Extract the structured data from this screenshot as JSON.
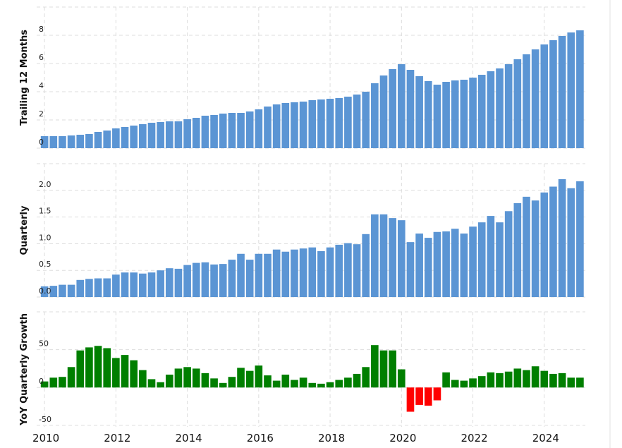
{
  "chart_data": [
    {
      "type": "bar",
      "y_label": "Trailing 12 Months",
      "color": "#5b95d4",
      "grid": true,
      "xlim": [
        2009.78,
        2025.15
      ],
      "xticks": [
        2010,
        2012,
        2014,
        2016,
        2018,
        2020,
        2022,
        2024
      ],
      "ylim": [
        0,
        10
      ],
      "yticks": [
        0,
        2,
        4,
        6,
        8
      ],
      "x": [
        2010,
        2010.25,
        2010.5,
        2010.75,
        2011,
        2011.25,
        2011.5,
        2011.75,
        2012,
        2012.25,
        2012.5,
        2012.75,
        2013,
        2013.25,
        2013.5,
        2013.75,
        2014,
        2014.25,
        2014.5,
        2014.75,
        2015,
        2015.25,
        2015.5,
        2015.75,
        2016,
        2016.25,
        2016.5,
        2016.75,
        2017,
        2017.25,
        2017.5,
        2017.75,
        2018,
        2018.25,
        2018.5,
        2018.75,
        2019,
        2019.25,
        2019.5,
        2019.75,
        2020,
        2020.25,
        2020.5,
        2020.75,
        2021,
        2021.25,
        2021.5,
        2021.75,
        2022,
        2022.25,
        2022.5,
        2022.75,
        2023,
        2023.25,
        2023.5,
        2023.75,
        2024,
        2024.25,
        2024.5,
        2024.75,
        2025
      ],
      "values": [
        0.85,
        0.85,
        0.85,
        0.9,
        0.95,
        1.0,
        1.15,
        1.25,
        1.4,
        1.5,
        1.6,
        1.7,
        1.8,
        1.85,
        1.9,
        1.9,
        2.05,
        2.15,
        2.3,
        2.35,
        2.45,
        2.5,
        2.5,
        2.6,
        2.75,
        2.95,
        3.1,
        3.2,
        3.25,
        3.3,
        3.4,
        3.45,
        3.5,
        3.55,
        3.65,
        3.8,
        4.0,
        4.6,
        5.15,
        5.6,
        5.95,
        5.55,
        5.1,
        4.75,
        4.5,
        4.7,
        4.8,
        4.85,
        5.0,
        5.2,
        5.45,
        5.65,
        5.95,
        6.3,
        6.65,
        7.0,
        7.35,
        7.65,
        7.95,
        8.2,
        8.35
      ]
    },
    {
      "type": "bar",
      "y_label": "Quarterly",
      "color": "#5b95d4",
      "grid": true,
      "xlim": [
        2009.78,
        2025.15
      ],
      "xticks": [
        2010,
        2012,
        2014,
        2016,
        2018,
        2020,
        2022,
        2024
      ],
      "ylim": [
        0,
        2.5
      ],
      "yticks": [
        {
          "value": 0,
          "label": "0.0"
        },
        0.5,
        {
          "value": 1,
          "label": "1.0"
        },
        1.5,
        {
          "value": 2,
          "label": "2.0"
        }
      ],
      "x": [
        2010,
        2010.25,
        2010.5,
        2010.75,
        2011,
        2011.25,
        2011.5,
        2011.75,
        2012,
        2012.25,
        2012.5,
        2012.75,
        2013,
        2013.25,
        2013.5,
        2013.75,
        2014,
        2014.25,
        2014.5,
        2014.75,
        2015,
        2015.25,
        2015.5,
        2015.75,
        2016,
        2016.25,
        2016.5,
        2016.75,
        2017,
        2017.25,
        2017.5,
        2017.75,
        2018,
        2018.25,
        2018.5,
        2018.75,
        2019,
        2019.25,
        2019.5,
        2019.75,
        2020,
        2020.25,
        2020.5,
        2020.75,
        2021,
        2021.25,
        2021.5,
        2021.75,
        2022,
        2022.25,
        2022.5,
        2022.75,
        2023,
        2023.25,
        2023.5,
        2023.75,
        2024,
        2024.25,
        2024.5,
        2024.75,
        2025
      ],
      "values": [
        0.2,
        0.21,
        0.23,
        0.23,
        0.32,
        0.34,
        0.35,
        0.35,
        0.42,
        0.46,
        0.46,
        0.44,
        0.46,
        0.5,
        0.54,
        0.53,
        0.6,
        0.64,
        0.65,
        0.61,
        0.62,
        0.7,
        0.81,
        0.7,
        0.81,
        0.81,
        0.89,
        0.85,
        0.89,
        0.91,
        0.93,
        0.86,
        0.93,
        0.98,
        1.01,
        0.99,
        1.18,
        1.55,
        1.55,
        1.48,
        1.44,
        1.03,
        1.19,
        1.11,
        1.22,
        1.23,
        1.28,
        1.19,
        1.32,
        1.4,
        1.52,
        1.4,
        1.61,
        1.76,
        1.88,
        1.81,
        1.96,
        2.07,
        2.21,
        2.04,
        2.17
      ]
    },
    {
      "type": "bar",
      "y_label": "YoY Quarterly Growth",
      "positive_color": "#007f00",
      "negative_color": "#ff0000",
      "grid": true,
      "xlim": [
        2009.78,
        2025.15
      ],
      "xticks": [
        2010,
        2012,
        2014,
        2016,
        2018,
        2020,
        2022,
        2024
      ],
      "ylim": [
        -52,
        100
      ],
      "yticks": [
        -50,
        0,
        50
      ],
      "x": [
        2010,
        2010.25,
        2010.5,
        2010.75,
        2011,
        2011.25,
        2011.5,
        2011.75,
        2012,
        2012.25,
        2012.5,
        2012.75,
        2013,
        2013.25,
        2013.5,
        2013.75,
        2014,
        2014.25,
        2014.5,
        2014.75,
        2015,
        2015.25,
        2015.5,
        2015.75,
        2016,
        2016.25,
        2016.5,
        2016.75,
        2017,
        2017.25,
        2017.5,
        2017.75,
        2018,
        2018.25,
        2018.5,
        2018.75,
        2019,
        2019.25,
        2019.5,
        2019.75,
        2020,
        2020.25,
        2020.5,
        2020.75,
        2021,
        2021.25,
        2021.5,
        2021.75,
        2022,
        2022.25,
        2022.5,
        2022.75,
        2023,
        2023.25,
        2023.5,
        2023.75,
        2024,
        2024.25,
        2024.5,
        2024.75,
        2025
      ],
      "values": [
        8,
        13,
        14,
        27,
        49,
        53,
        55,
        52,
        39,
        43,
        36,
        23,
        11,
        7,
        17,
        25,
        27,
        25,
        19,
        12,
        6,
        14,
        26,
        22,
        29,
        16,
        9,
        17,
        10,
        13,
        6,
        5,
        7,
        10,
        13,
        18,
        27,
        56,
        49,
        49,
        24,
        -32,
        -23,
        -24,
        -17,
        20,
        10,
        9,
        12,
        15,
        20,
        19,
        21,
        25,
        23,
        28,
        22,
        18,
        19,
        13,
        13
      ]
    }
  ]
}
